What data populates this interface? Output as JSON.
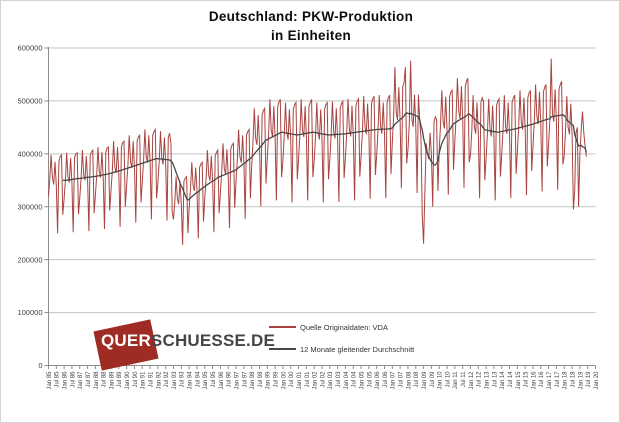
{
  "figure": {
    "title_line1": "Deutschland: PKW-Produktion",
    "title_line2": "in Einheiten"
  },
  "watermark": {
    "box_text": "QUER",
    "rest_text": "SCHUESSE.DE",
    "box_color": "#9e2b24",
    "text_color": "#454545"
  },
  "chart_data": {
    "type": "line",
    "title": "Deutschland: PKW-Produktion in Einheiten",
    "xlabel": "",
    "ylabel": "",
    "grid": true,
    "legend_position": "inside-bottom",
    "ylim": [
      0,
      600000
    ],
    "y_ticks": [
      0,
      100000,
      200000,
      300000,
      400000,
      500000,
      600000
    ],
    "x_axis_span_months": 420,
    "x_tick_every_months": 6,
    "x_tick_labels": [
      "Jan 85",
      "Jul 85",
      "Jan 86",
      "Jul 86",
      "Jan 87",
      "Jul 87",
      "Jan 88",
      "Jul 88",
      "Jan 89",
      "Jul 89",
      "Jan 90",
      "Jul 90",
      "Jan 91",
      "Jul 91",
      "Jan 92",
      "Jul 92",
      "Jan 93",
      "Jul 93",
      "Jan 94",
      "Jul 94",
      "Jan 95",
      "Jul 95",
      "Jan 96",
      "Jul 96",
      "Jan 97",
      "Jul 97",
      "Jan 98",
      "Jul 98",
      "Jan 99",
      "Jul 99",
      "Jan 00",
      "Jul 00",
      "Jan 01",
      "Jul 01",
      "Jan 02",
      "Jul 02",
      "Jan 03",
      "Jul 03",
      "Jan 04",
      "Jul 04",
      "Jan 05",
      "Jul 05",
      "Jan 06",
      "Jul 06",
      "Jan 07",
      "Jul 07",
      "Jan 08",
      "Jul 08",
      "Jan 09",
      "Jul 09",
      "Jan 10",
      "Jul 10",
      "Jan 11",
      "Jul 11",
      "Jan 12",
      "Jul 12",
      "Jan 13",
      "Jul 13",
      "Jan 14",
      "Jul 14",
      "Jan 15",
      "Jul 15",
      "Jan 16",
      "Jul 16",
      "Jan 17",
      "Jul 17",
      "Jan 18",
      "Jul 18",
      "Jan 19",
      "Jul 19",
      "Jan 20"
    ],
    "colors": {
      "gridline": "#c3c3c3",
      "axis": "#8c8c8c",
      "tick_label": "#3f3f3f"
    },
    "series": [
      {
        "name": "Quelle Originaldaten: VDA",
        "color": "#a8443f",
        "first_point": "Jan 1985",
        "last_point": "Jun 2019",
        "values": [
          320000,
          352000,
          398000,
          355000,
          342000,
          385000,
          340000,
          250000,
          385000,
          395000,
          398000,
          285000,
          315000,
          350000,
          402000,
          356000,
          346000,
          392000,
          346000,
          252000,
          392000,
          400000,
          402000,
          286000,
          318000,
          354000,
          407000,
          360000,
          350000,
          396000,
          350000,
          254000,
          396000,
          404000,
          407000,
          288000,
          322000,
          359000,
          413000,
          366000,
          355000,
          403000,
          355000,
          258000,
          403000,
          411000,
          413000,
          293000,
          330000,
          368000,
          424000,
          375000,
          364000,
          413000,
          364000,
          262000,
          413000,
          421000,
          424000,
          300000,
          339000,
          378000,
          435000,
          385000,
          373000,
          424000,
          373000,
          270000,
          424000,
          432000,
          435000,
          308000,
          348000,
          388000,
          446000,
          395000,
          383000,
          435000,
          383000,
          276000,
          435000,
          442000,
          446000,
          316000,
          345000,
          385000,
          443000,
          392000,
          380000,
          431000,
          380000,
          274000,
          431000,
          439000,
          420000,
          290000,
          276000,
          309000,
          357000,
          315000,
          305000,
          348000,
          305000,
          228000,
          348000,
          354000,
          357000,
          250000,
          299000,
          334000,
          384000,
          340000,
          330000,
          374000,
          330000,
          240000,
          374000,
          381000,
          384000,
          272000,
          317000,
          354000,
          407000,
          360000,
          349000,
          396000,
          349000,
          252000,
          396000,
          403000,
          407000,
          288000,
          327000,
          366000,
          420000,
          372000,
          361000,
          409000,
          361000,
          260000,
          409000,
          417000,
          420000,
          298000,
          348000,
          388000,
          446000,
          395000,
          383000,
          435000,
          383000,
          277000,
          435000,
          442000,
          446000,
          316000,
          378000,
          423000,
          486000,
          430000,
          417000,
          473000,
          417000,
          301000,
          473000,
          482000,
          486000,
          344000,
          392000,
          437000,
          503000,
          445000,
          432000,
          490000,
          432000,
          312000,
          490000,
          498000,
          503000,
          356000,
          387000,
          432000,
          497000,
          440000,
          427000,
          484000,
          427000,
          308000,
          484000,
          493000,
          497000,
          352000,
          392000,
          437000,
          503000,
          445000,
          432000,
          490000,
          432000,
          312000,
          490000,
          498000,
          503000,
          356000,
          387000,
          432000,
          497000,
          440000,
          427000,
          484000,
          427000,
          308000,
          484000,
          493000,
          497000,
          352000,
          389000,
          434000,
          499000,
          442000,
          429000,
          486000,
          429000,
          309000,
          486000,
          495000,
          499000,
          354000,
          392000,
          438000,
          504000,
          446000,
          433000,
          491000,
          433000,
          312000,
          491000,
          500000,
          504000,
          357000,
          396000,
          442000,
          509000,
          450000,
          437000,
          495000,
          437000,
          315000,
          495000,
          504000,
          509000,
          360000,
          398000,
          444000,
          511000,
          452000,
          438000,
          497000,
          438000,
          316000,
          497000,
          506000,
          511000,
          362000,
          421000,
          470000,
          564000,
          478000,
          464000,
          526000,
          464000,
          335000,
          526000,
          535000,
          564000,
          382000,
          409000,
          457000,
          576000,
          465000,
          451000,
          512000,
          451000,
          326000,
          512000,
          465000,
          430000,
          280000,
          230000,
          330000,
          420000,
          400000,
          390000,
          440000,
          400000,
          300000,
          460000,
          470000,
          465000,
          330000,
          407000,
          453000,
          520000,
          462000,
          448000,
          508000,
          448000,
          323000,
          508000,
          517000,
          520000,
          370000,
          422000,
          471000,
          543000,
          480000,
          466000,
          528000,
          466000,
          336000,
          528000,
          538000,
          543000,
          384000,
          398000,
          444000,
          511000,
          452000,
          438000,
          497000,
          438000,
          316000,
          497000,
          506000,
          500000,
          350000,
          392000,
          438000,
          504000,
          446000,
          433000,
          491000,
          433000,
          312000,
          491000,
          500000,
          504000,
          357000,
          398000,
          444000,
          511000,
          452000,
          438000,
          497000,
          438000,
          316000,
          497000,
          506000,
          511000,
          362000,
          405000,
          452000,
          520000,
          460000,
          446000,
          506000,
          446000,
          322000,
          506000,
          515000,
          520000,
          368000,
          414000,
          462000,
          531000,
          470000,
          456000,
          517000,
          456000,
          329000,
          517000,
          526000,
          531000,
          376000,
          418000,
          466000,
          580000,
          475000,
          461000,
          522000,
          461000,
          332000,
          522000,
          531000,
          537000,
          380000,
          396000,
          442000,
          509000,
          450000,
          437000,
          495000,
          437000,
          295000,
          330000,
          440000,
          450000,
          300000,
          400000,
          445000,
          480000,
          440000,
          415000,
          395000
        ]
      },
      {
        "name": "12 Monate gleitender Durchschnitt",
        "color": "#474747",
        "derivation": "12-month trailing moving average of first series"
      }
    ]
  }
}
